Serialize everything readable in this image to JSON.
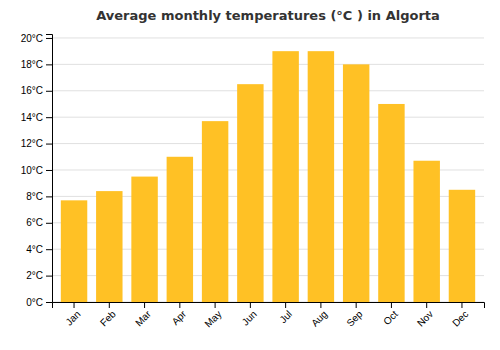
{
  "chart_data": {
    "type": "bar",
    "title": "Average monthly temperatures (°C ) in Algorta",
    "categories": [
      "Jan",
      "Feb",
      "Mar",
      "Apr",
      "May",
      "Jun",
      "Jul",
      "Aug",
      "Sep",
      "Oct",
      "Nov",
      "Dec"
    ],
    "values": [
      7.7,
      8.4,
      9.5,
      11.0,
      13.7,
      16.5,
      19.0,
      19.0,
      18.0,
      15.0,
      10.7,
      8.5
    ],
    "color": "#FFC125",
    "ylim": [
      0,
      20.3
    ],
    "yticks": [
      {
        "value": 0,
        "label": "0°C"
      },
      {
        "value": 2,
        "label": "2°C"
      },
      {
        "value": 4,
        "label": "4°C"
      },
      {
        "value": 6,
        "label": "6°C"
      },
      {
        "value": 8,
        "label": "8°C"
      },
      {
        "value": 10,
        "label": "10°C"
      },
      {
        "value": 12,
        "label": "12°C"
      },
      {
        "value": 14,
        "label": "14°C"
      },
      {
        "value": 16,
        "label": "16°C"
      },
      {
        "value": 18,
        "label": "18°C"
      },
      {
        "value": 20,
        "label": "20°C"
      }
    ],
    "grid": true
  }
}
